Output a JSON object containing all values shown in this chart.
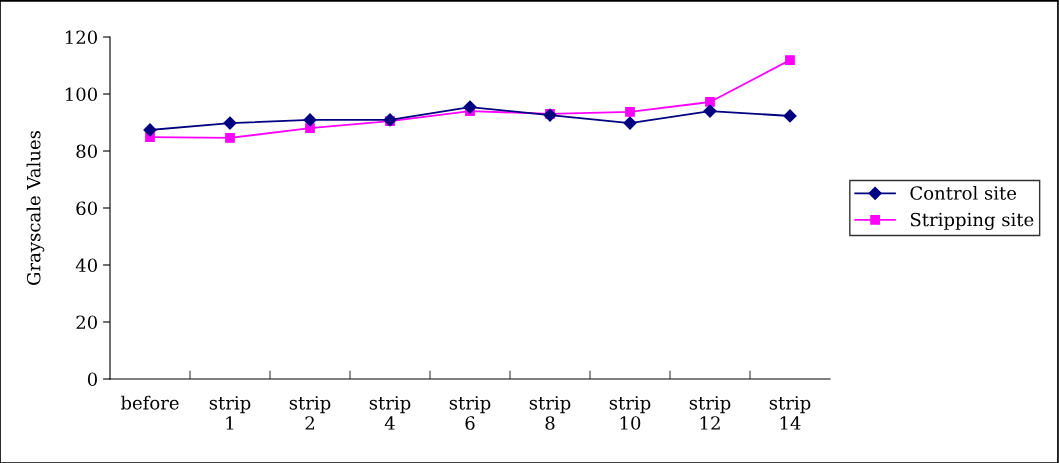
{
  "chart_data": {
    "type": "line",
    "ylabel": "Grayscale Values",
    "categories": [
      "before",
      "strip\n1",
      "strip\n2",
      "strip\n4",
      "strip\n6",
      "strip\n8",
      "strip\n10",
      "strip\n12",
      "strip\n14"
    ],
    "series": [
      {
        "name": "Control site",
        "color": "#000080",
        "marker": "diamond",
        "values": [
          87.4,
          89.8,
          90.9,
          90.9,
          95.4,
          92.6,
          89.8,
          94.0,
          92.3
        ]
      },
      {
        "name": "Stripping site",
        "color": "#ff00ff",
        "marker": "square",
        "values": [
          84.9,
          84.6,
          88.0,
          90.5,
          94.0,
          93.0,
          93.7,
          97.2,
          111.9
        ]
      }
    ],
    "ylim": [
      0,
      120
    ],
    "yticks": [
      0,
      20,
      40,
      60,
      80,
      100,
      120
    ],
    "grid": false,
    "legend": "right",
    "line_style": "solid"
  }
}
